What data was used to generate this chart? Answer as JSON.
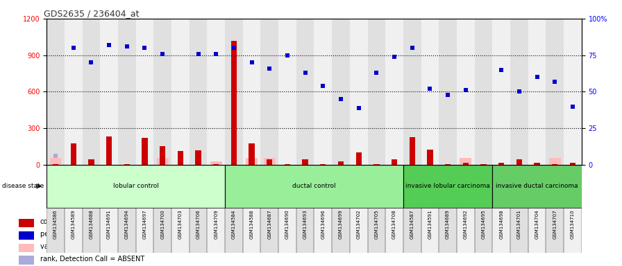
{
  "title": "GDS2635 / 236404_at",
  "samples": [
    "GSM134586",
    "GSM134589",
    "GSM134688",
    "GSM134691",
    "GSM134694",
    "GSM134697",
    "GSM134700",
    "GSM134703",
    "GSM134706",
    "GSM134709",
    "GSM134584",
    "GSM134588",
    "GSM134687",
    "GSM134690",
    "GSM134693",
    "GSM134696",
    "GSM134699",
    "GSM134702",
    "GSM134705",
    "GSM134708",
    "GSM134587",
    "GSM134591",
    "GSM134689",
    "GSM134692",
    "GSM134695",
    "GSM134698",
    "GSM134701",
    "GSM134704",
    "GSM134707",
    "GSM134710"
  ],
  "count_values": [
    8,
    175,
    45,
    235,
    8,
    220,
    155,
    115,
    120,
    8,
    1020,
    175,
    45,
    8,
    45,
    8,
    28,
    105,
    8,
    48,
    225,
    125,
    8,
    18,
    8,
    18,
    48,
    18,
    8,
    18
  ],
  "rank_values": [
    null,
    80,
    70,
    82,
    81,
    80,
    76,
    null,
    76,
    76,
    80,
    70,
    66,
    75,
    63,
    54,
    45,
    39,
    63,
    74,
    80,
    52,
    48,
    51,
    null,
    65,
    50,
    60,
    57,
    40
  ],
  "absent_value_values": [
    55,
    null,
    null,
    null,
    null,
    null,
    55,
    null,
    null,
    30,
    null,
    55,
    55,
    null,
    null,
    null,
    null,
    null,
    null,
    null,
    null,
    null,
    null,
    55,
    null,
    null,
    null,
    null,
    55,
    null
  ],
  "absent_rank_values": [
    6,
    null,
    null,
    null,
    null,
    null,
    null,
    null,
    null,
    null,
    null,
    null,
    null,
    null,
    null,
    null,
    null,
    null,
    null,
    null,
    null,
    null,
    null,
    null,
    null,
    null,
    null,
    null,
    null,
    null
  ],
  "groups": [
    {
      "label": "lobular control",
      "start": 0,
      "end": 10,
      "color": "#ccffcc"
    },
    {
      "label": "ductal control",
      "start": 10,
      "end": 20,
      "color": "#99ee99"
    },
    {
      "label": "invasive lobular carcinoma",
      "start": 20,
      "end": 25,
      "color": "#55cc55"
    },
    {
      "label": "invasive ductal carcinoma",
      "start": 25,
      "end": 30,
      "color": "#66cc66"
    }
  ],
  "ylim_left": [
    0,
    1200
  ],
  "ylim_right": [
    0,
    100
  ],
  "yticks_left": [
    0,
    300,
    600,
    900,
    1200
  ],
  "yticks_right": [
    0,
    25,
    50,
    75,
    100
  ],
  "bar_color": "#cc0000",
  "rank_color": "#0000cc",
  "absent_value_color": "#ffbbbb",
  "absent_rank_color": "#aaaadd",
  "bg_color": "#ffffff",
  "col_bg_odd": "#e0e0e0",
  "col_bg_even": "#f0f0f0"
}
